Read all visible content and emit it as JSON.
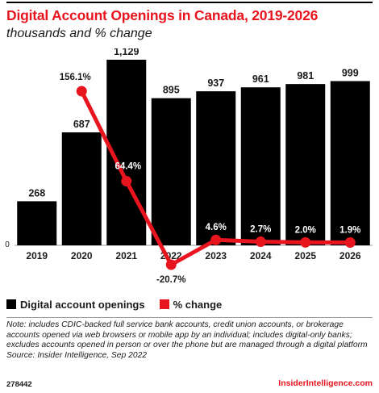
{
  "header": {
    "title": "Digital Account Openings in Canada, 2019-2026",
    "subtitle": "thousands and % change"
  },
  "legend": {
    "items": [
      {
        "label": "Digital account openings",
        "color": "#000000"
      },
      {
        "label": "% change",
        "color": "#e8141e"
      }
    ]
  },
  "chart_data": {
    "type": "bar",
    "categories": [
      "2019",
      "2020",
      "2021",
      "2022",
      "2023",
      "2024",
      "2025",
      "2026"
    ],
    "series": [
      {
        "name": "Digital account openings",
        "values": [
          268,
          687,
          1129,
          895,
          937,
          961,
          981,
          999
        ],
        "labels": [
          "268",
          "687",
          "1,129",
          "895",
          "937",
          "961",
          "981",
          "999"
        ],
        "color": "#000000"
      },
      {
        "name": "% change",
        "type": "line",
        "x": [
          "2020",
          "2021",
          "2022",
          "2023",
          "2024",
          "2025",
          "2026"
        ],
        "values": [
          156.1,
          64.4,
          -20.7,
          4.6,
          2.7,
          2.0,
          1.9
        ],
        "labels": [
          "156.1%",
          "64.4%",
          "-20.7%",
          "4.6%",
          "2.7%",
          "2.0%",
          "1.9%"
        ],
        "color": "#e8141e"
      }
    ],
    "title": "Digital Account Openings in Canada, 2019-2026",
    "zero_label": "0",
    "bar_range": [
      0,
      1129
    ],
    "pct_range": [
      -20.7,
      156.1
    ],
    "grid": false
  },
  "note": "Note: includes CDIC-backed full service bank accounts, credit union accounts, or brokerage accounts opened via web browsers or mobile app by an individual; includes digital-only banks; excludes accounts opened in person or over the phone but are managed through a digital platform",
  "source": "Source: Insider Intelligence, Sep 2022",
  "footer": {
    "id": "278442",
    "brand": "InsiderIntelligence.com"
  }
}
